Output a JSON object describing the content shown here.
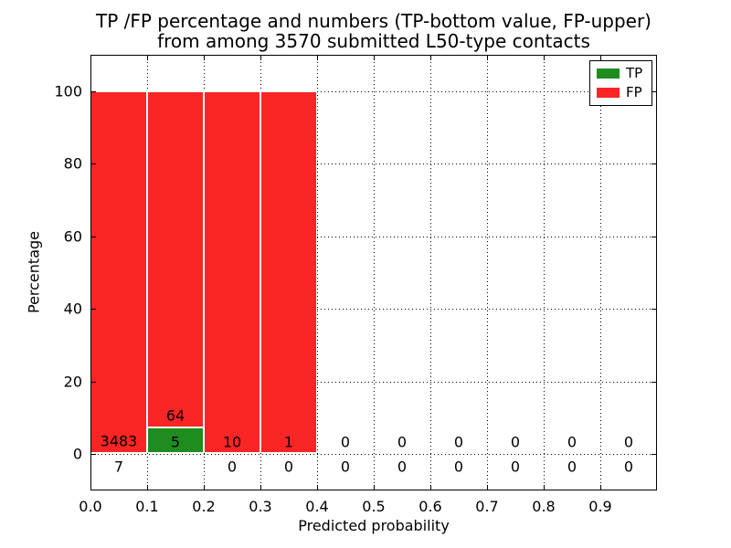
{
  "title": {
    "line1": "TP /FP percentage and numbers (TP-bottom value, FP-upper)",
    "line2": "from among 3570 submitted L50-type contacts"
  },
  "chart_data": {
    "type": "bar",
    "stacked": true,
    "title": "TP /FP percentage and numbers (TP-bottom value, FP-upper) from among 3570 submitted L50-type contacts",
    "xlabel": "Predicted probability",
    "ylabel": "Percentage",
    "xlim": [
      0.0,
      1.0
    ],
    "ylim": [
      -10,
      110
    ],
    "xticks": [
      0.0,
      0.1,
      0.2,
      0.3,
      0.4,
      0.5,
      0.6,
      0.7,
      0.8,
      0.9
    ],
    "yticks": [
      0,
      20,
      40,
      60,
      80,
      100
    ],
    "grid": "dotted",
    "legend_position": "upper right",
    "total_contacts": 3570,
    "bin_width": 0.1,
    "series": [
      {
        "name": "TP",
        "color": "#1f8c1f"
      },
      {
        "name": "FP",
        "color": "#fa2525"
      }
    ],
    "bins": [
      {
        "x_start": 0.0,
        "tp": 7,
        "fp": 3483
      },
      {
        "x_start": 0.1,
        "tp": 5,
        "fp": 64
      },
      {
        "x_start": 0.2,
        "tp": 0,
        "fp": 10
      },
      {
        "x_start": 0.3,
        "tp": 0,
        "fp": 1
      },
      {
        "x_start": 0.4,
        "tp": 0,
        "fp": 0
      },
      {
        "x_start": 0.5,
        "tp": 0,
        "fp": 0
      },
      {
        "x_start": 0.6,
        "tp": 0,
        "fp": 0
      },
      {
        "x_start": 0.7,
        "tp": 0,
        "fp": 0
      },
      {
        "x_start": 0.8,
        "tp": 0,
        "fp": 0
      },
      {
        "x_start": 0.9,
        "tp": 0,
        "fp": 0
      }
    ]
  }
}
